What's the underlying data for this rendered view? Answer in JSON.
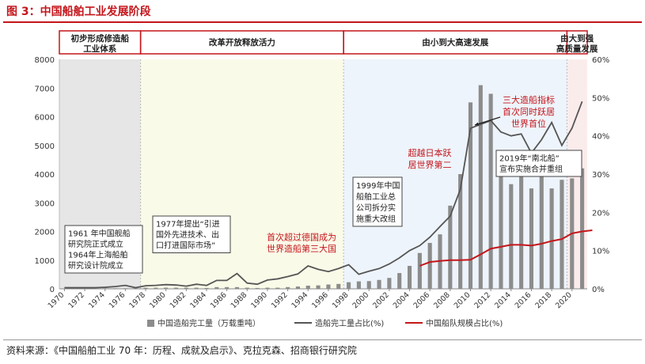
{
  "figure_title": "图 3：中国船舶工业发展阶段",
  "source_text": "资料来源：《中国船舶工业 70 年：历程、成就及启示》、克拉克森、招商银行研究院",
  "colors": {
    "accent": "#c4161c",
    "bar": "#8c8c8c",
    "share_line": "#555555",
    "fleet_line": "#c4161c"
  },
  "chart_data": {
    "type": "bar",
    "title": "中国船舶工业发展阶段",
    "years": [
      1970,
      1971,
      1972,
      1973,
      1974,
      1975,
      1976,
      1977,
      1978,
      1979,
      1980,
      1981,
      1982,
      1983,
      1984,
      1985,
      1986,
      1987,
      1988,
      1989,
      1990,
      1991,
      1992,
      1993,
      1994,
      1995,
      1996,
      1997,
      1998,
      1999,
      2000,
      2001,
      2002,
      2003,
      2004,
      2005,
      2006,
      2007,
      2008,
      2009,
      2010,
      2011,
      2012,
      2013,
      2014,
      2015,
      2016,
      2017,
      2018,
      2019,
      2020,
      2021
    ],
    "x_tick_labels": [
      "1970",
      "1972",
      "1974",
      "1976",
      "1978",
      "1980",
      "1982",
      "1984",
      "1986",
      "1988",
      "1990",
      "1992",
      "1994",
      "1996",
      "1998",
      "2000",
      "2002",
      "2004",
      "2006",
      "2008",
      "2010",
      "2012",
      "2014",
      "2016",
      "2018",
      "2020"
    ],
    "y_left": {
      "min": 0,
      "max": 8000,
      "ticks": [
        "0",
        "1000",
        "2000",
        "3000",
        "4000",
        "5000",
        "6000",
        "7000",
        "8000"
      ]
    },
    "y_right": {
      "min": 0,
      "max": 60,
      "ticks": [
        "0%",
        "10%",
        "20%",
        "30%",
        "40%",
        "50%",
        "60%"
      ]
    },
    "series": [
      {
        "name": "中国造船完工量（万载重吨）",
        "type": "bar",
        "axis": "left",
        "values": [
          5,
          5,
          10,
          10,
          20,
          20,
          20,
          30,
          40,
          40,
          40,
          40,
          40,
          40,
          30,
          60,
          60,
          60,
          40,
          30,
          40,
          40,
          60,
          80,
          110,
          120,
          150,
          170,
          230,
          260,
          270,
          310,
          380,
          550,
          800,
          1250,
          1600,
          1900,
          2900,
          4000,
          6500,
          7100,
          6800,
          4500,
          3650,
          4000,
          3500,
          4000,
          3500,
          3800,
          3850,
          4200
        ]
      },
      {
        "name": "造船完工量占比(%)",
        "type": "line",
        "axis": "right",
        "values": [
          0.3,
          0.3,
          0.3,
          0.3,
          0.4,
          0.6,
          0.9,
          0.3,
          0.8,
          0.9,
          1.1,
          1.0,
          0.7,
          1.2,
          0.9,
          2.2,
          2.2,
          4.0,
          1.5,
          1.2,
          2.3,
          2.6,
          3.2,
          3.9,
          6.0,
          5.1,
          4.5,
          5.3,
          6.3,
          3.8,
          4.6,
          5.3,
          6.5,
          8.1,
          10.0,
          11.3,
          13.5,
          16.3,
          19.0,
          26.0,
          42.0,
          43.0,
          44.0,
          41.0,
          40.0,
          40.5,
          35.5,
          39.0,
          43.5,
          37.5,
          42.0,
          49.0
        ]
      },
      {
        "name": "中国船队规模占比(%)",
        "type": "line",
        "axis": "right",
        "start_year": 2005,
        "values": [
          6.0,
          7.0,
          7.3,
          7.5,
          7.5,
          7.6,
          9.0,
          10.5,
          11.0,
          11.5,
          11.5,
          11.3,
          11.8,
          12.5,
          13.0,
          14.5,
          15.0,
          15.3
        ]
      }
    ],
    "legend": [
      "中国造船完工量（万载重吨）",
      "造船完工量占比(%)",
      "中国船队规模占比(%)"
    ],
    "phases": [
      {
        "label_line1": "初步形成修造船",
        "label_line2": "工业体系",
        "start": 1970,
        "end": 1978,
        "shade": "#e6e6e6"
      },
      {
        "label_line1": "改革开放释放活力",
        "label_line2": "",
        "start": 1978,
        "end": 1998,
        "shade": "#fafae8"
      },
      {
        "label_line1": "由小到大高速发展",
        "label_line2": "",
        "start": 1998,
        "end": 2020,
        "shade": "#eef4fb"
      },
      {
        "label_line1": "由大到强",
        "label_line2": "高质量发展",
        "start": 2020,
        "end": 2022,
        "shade": "#fbecec"
      }
    ],
    "annotations": [
      {
        "id": "a1961",
        "lines": [
          "1961 年中国舰船",
          "研究院正式成立",
          "1964年上海船舶",
          "研究设计院成立"
        ],
        "boxed": true,
        "color": "#222222"
      },
      {
        "id": "a1977",
        "lines": [
          "1977年提出“引进",
          "国外先进技术、出",
          "口打进国际市场”"
        ],
        "boxed": true,
        "color": "#222222"
      },
      {
        "id": "aGermany",
        "lines": [
          "首次超过德国成为",
          "世界造船第三大国"
        ],
        "boxed": false,
        "color": "#c4161c"
      },
      {
        "id": "a1999",
        "lines": [
          "1999年中国",
          "船舶工业总",
          "公司拆分实",
          "施重大改组"
        ],
        "boxed": true,
        "color": "#222222"
      },
      {
        "id": "aJapan",
        "lines": [
          "超越日本跃",
          "居世界第二"
        ],
        "boxed": false,
        "color": "#c4161c"
      },
      {
        "id": "aTop",
        "lines": [
          "三大造船指标",
          "首次同时跃居",
          "世界首位"
        ],
        "boxed": false,
        "color": "#c4161c"
      },
      {
        "id": "a2019",
        "lines": [
          "2019年“南北船”",
          "宣布实施合并重组"
        ],
        "boxed": true,
        "color": "#222222"
      }
    ]
  }
}
